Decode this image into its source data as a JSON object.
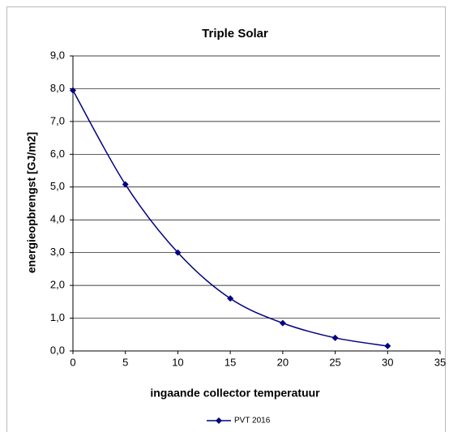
{
  "chart_data": {
    "type": "line",
    "title": "Triple Solar",
    "x_label": "ingaande collector temperatuur",
    "y_label": "energieopbrengst  [GJ/m2]",
    "x": [
      0,
      5,
      10,
      15,
      20,
      25,
      30
    ],
    "series": [
      {
        "name": "PVT 2016",
        "color": "#000080",
        "values": [
          7.95,
          5.08,
          3.0,
          1.6,
          0.85,
          0.4,
          0.15
        ]
      }
    ],
    "xlim": [
      0,
      35
    ],
    "xticks": [
      0,
      5,
      10,
      15,
      20,
      25,
      30,
      35
    ],
    "ylim": [
      0,
      9
    ],
    "yticks": [
      {
        "value": 0,
        "label": "0,0"
      },
      {
        "value": 1,
        "label": "1,0"
      },
      {
        "value": 2,
        "label": "2,0"
      },
      {
        "value": 3,
        "label": "3,0"
      },
      {
        "value": 4,
        "label": "4,0"
      },
      {
        "value": 5,
        "label": "5,0"
      },
      {
        "value": 6,
        "label": "6,0"
      },
      {
        "value": 7,
        "label": "7,0"
      },
      {
        "value": 8,
        "label": "8,0"
      },
      {
        "value": 9,
        "label": "9,0"
      }
    ],
    "grid": true,
    "smooth": true,
    "legend": "bottom"
  }
}
